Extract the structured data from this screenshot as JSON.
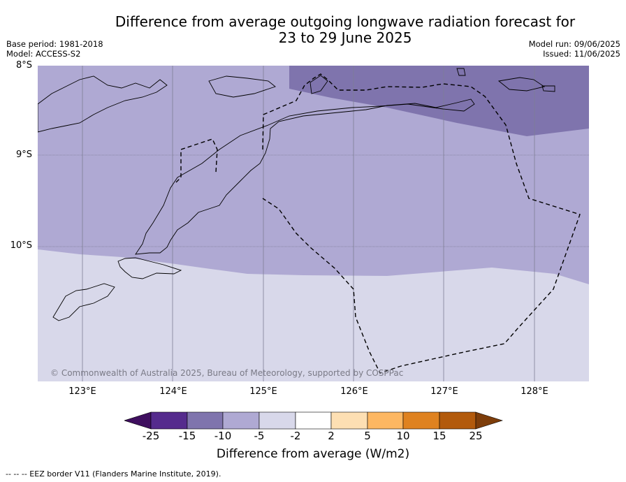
{
  "title": {
    "line1": "Difference from average outgoing longwave radiation forecast for",
    "line2": "23 to 29 June 2025"
  },
  "meta": {
    "base_period": "Base period: 1981-2018",
    "model": "Model: ACCESS-S2",
    "model_run": "Model run: 09/06/2025",
    "issued": "Issued: 11/06/2025"
  },
  "map": {
    "lat_labels": [
      "8°S",
      "9°S",
      "10°S"
    ],
    "lon_labels": [
      "123°E",
      "124°E",
      "125°E",
      "126°E",
      "127°E",
      "128°E"
    ],
    "copyright": "© Commonwealth of Australia 2025, Bureau of Meteorology, supported by COSPPac",
    "fill_colors": {
      "band_-15_-10": "#7f74ad",
      "band_-10_-5": "#afa9d3",
      "band_-5_-2": "#d8d8ea"
    }
  },
  "colorbar": {
    "ticks": [
      "-25",
      "-15",
      "-10",
      "-5",
      "-2",
      "2",
      "5",
      "10",
      "15",
      "25"
    ],
    "colors": [
      "#3f0f5f",
      "#552b8d",
      "#7f74ad",
      "#afa9d3",
      "#d8d8ea",
      "#ffffff",
      "#fddfb3",
      "#fdb762",
      "#df8220",
      "#b25a0c",
      "#7d3d0a"
    ],
    "label": "Difference from average (W/m2)"
  },
  "legend_note": "--  --  -- EEZ border V11 (Flanders Marine Institute, 2019)."
}
